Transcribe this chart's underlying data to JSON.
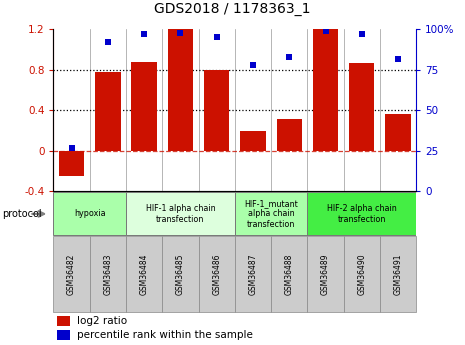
{
  "title": "GDS2018 / 1178363_1",
  "samples": [
    "GSM36482",
    "GSM36483",
    "GSM36484",
    "GSM36485",
    "GSM36486",
    "GSM36487",
    "GSM36488",
    "GSM36489",
    "GSM36490",
    "GSM36491"
  ],
  "log2_ratio": [
    -0.25,
    0.78,
    0.88,
    1.2,
    0.8,
    0.2,
    0.32,
    1.2,
    0.87,
    0.36
  ],
  "percentile": [
    27,
    92,
    97,
    98,
    95,
    78,
    83,
    99,
    97,
    82
  ],
  "bar_color": "#cc1100",
  "dot_color": "#0000cc",
  "ylim_left": [
    -0.4,
    1.2
  ],
  "ylim_right": [
    0,
    100
  ],
  "yticks_left": [
    -0.4,
    0.0,
    0.4,
    0.8,
    1.2
  ],
  "yticks_right": [
    0,
    25,
    50,
    75,
    100
  ],
  "ytick_labels_right": [
    "0",
    "25",
    "50",
    "75",
    "100%"
  ],
  "hlines_dotted": [
    0.4,
    0.8
  ],
  "hline_dashed_color": "#cc1100",
  "groups": [
    {
      "label": "hypoxia",
      "start": 0,
      "end": 2,
      "color": "#aaffaa"
    },
    {
      "label": "HIF-1 alpha chain\ntransfection",
      "start": 2,
      "end": 5,
      "color": "#ddffdd"
    },
    {
      "label": "HIF-1_mutant\nalpha chain\ntransfection",
      "start": 5,
      "end": 7,
      "color": "#aaffaa"
    },
    {
      "label": "HIF-2 alpha chain\ntransfection",
      "start": 7,
      "end": 10,
      "color": "#44ee44"
    }
  ],
  "protocol_label": "protocol",
  "legend_red": "log2 ratio",
  "legend_blue": "percentile rank within the sample",
  "xtick_bg_color": "#cccccc",
  "xtick_border_color": "#888888"
}
